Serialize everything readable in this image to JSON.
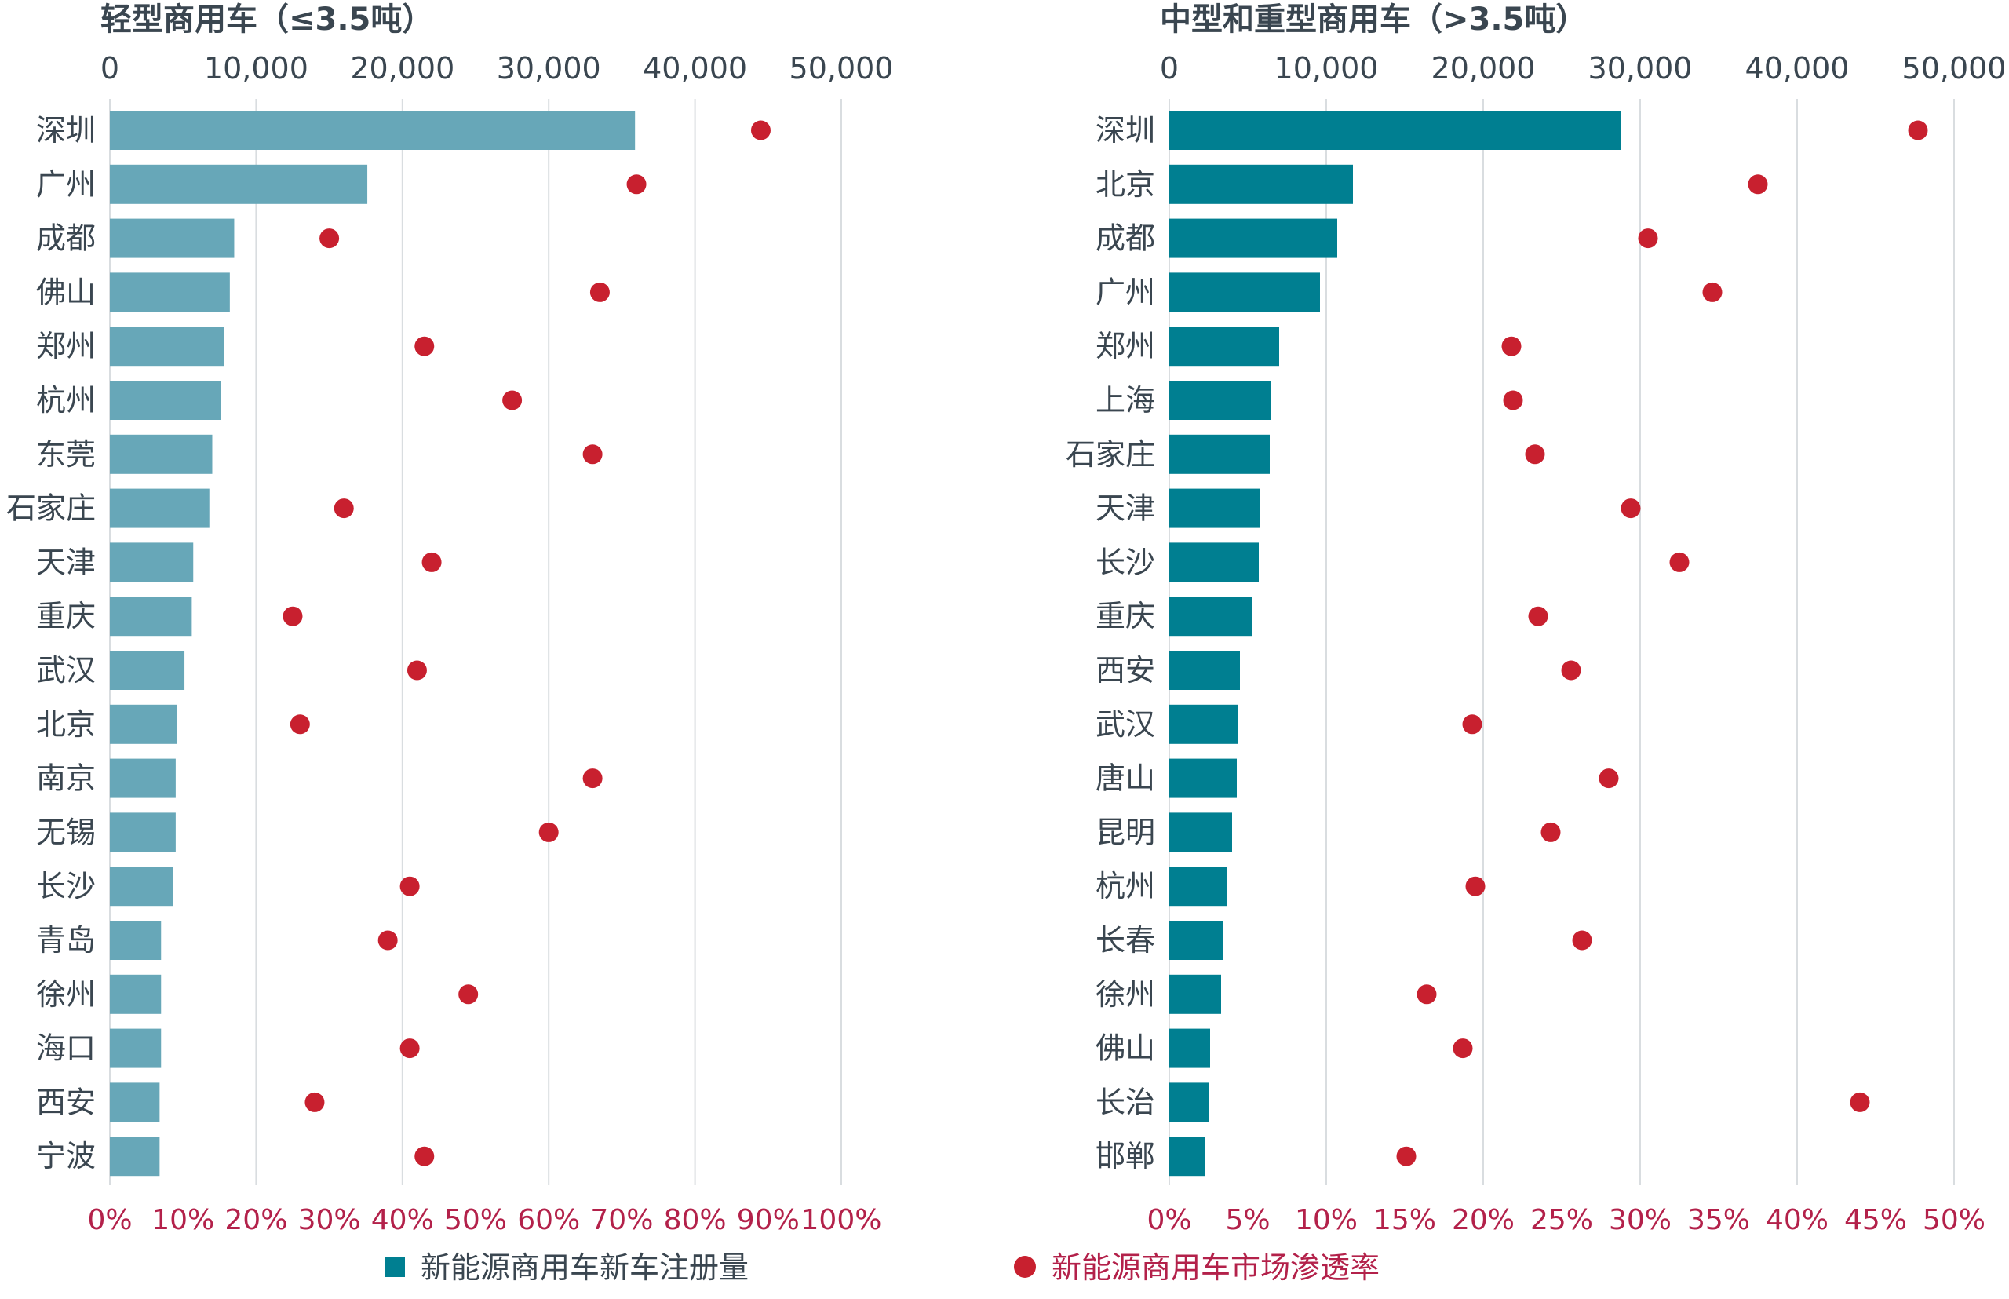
{
  "colors": {
    "bar_light": "#67A7B8",
    "bar_heavy": "#007F91",
    "dot": "#C8202F",
    "axis_text": "#3A4650",
    "pct_text": "#B3214A",
    "grid": "#D9DDE0"
  },
  "legend": {
    "bar_label": "新能源商用车新车注册量",
    "dot_label": "新能源商用车市场渗透率"
  },
  "chart_data": [
    {
      "type": "bar",
      "title": "轻型商用车（≤3.5吨）",
      "xlim": [
        0,
        50000
      ],
      "x_ticks": [
        0,
        10000,
        20000,
        30000,
        40000,
        50000
      ],
      "x_tick_labels": [
        "0",
        "10,000",
        "20,000",
        "30,000",
        "40,000",
        "50,000"
      ],
      "pct_lim": [
        0,
        1.0
      ],
      "pct_ticks": [
        0,
        0.1,
        0.2,
        0.3,
        0.4,
        0.5,
        0.6,
        0.7,
        0.8,
        0.9,
        1.0
      ],
      "pct_tick_labels": [
        "0%",
        "10%",
        "20%",
        "30%",
        "40%",
        "50%",
        "60%",
        "70%",
        "80%",
        "90%",
        "100%"
      ],
      "categories": [
        "深圳",
        "广州",
        "成都",
        "佛山",
        "郑州",
        "杭州",
        "东莞",
        "石家庄",
        "天津",
        "重庆",
        "武汉",
        "北京",
        "南京",
        "无锡",
        "长沙",
        "青岛",
        "徐州",
        "海口",
        "西安",
        "宁波"
      ],
      "series": [
        {
          "name": "新能源商用车新车注册量",
          "type": "bar",
          "values": [
            35900,
            17600,
            8500,
            8200,
            7800,
            7600,
            7000,
            6800,
            5700,
            5600,
            5100,
            4600,
            4500,
            4500,
            4300,
            3500,
            3500,
            3500,
            3400,
            3400
          ]
        },
        {
          "name": "新能源商用车市场渗透率",
          "type": "scatter",
          "values": [
            0.89,
            0.72,
            0.3,
            0.67,
            0.43,
            0.55,
            0.66,
            0.32,
            0.44,
            0.25,
            0.42,
            0.26,
            0.66,
            0.6,
            0.41,
            0.38,
            0.49,
            0.41,
            0.28,
            0.43
          ]
        }
      ]
    },
    {
      "type": "bar",
      "title": "中型和重型商用车（>3.5吨）",
      "xlim": [
        0,
        50000
      ],
      "x_ticks": [
        0,
        10000,
        20000,
        30000,
        40000,
        50000
      ],
      "x_tick_labels": [
        "0",
        "10,000",
        "20,000",
        "30,000",
        "40,000",
        "50,000"
      ],
      "pct_lim": [
        0,
        0.5
      ],
      "pct_ticks": [
        0,
        0.05,
        0.1,
        0.15,
        0.2,
        0.25,
        0.3,
        0.35,
        0.4,
        0.45,
        0.5
      ],
      "pct_tick_labels": [
        "0%",
        "5%",
        "10%",
        "15%",
        "20%",
        "25%",
        "30%",
        "35%",
        "40%",
        "45%",
        "50%"
      ],
      "categories": [
        "深圳",
        "北京",
        "成都",
        "广州",
        "郑州",
        "上海",
        "石家庄",
        "天津",
        "长沙",
        "重庆",
        "西安",
        "武汉",
        "唐山",
        "昆明",
        "杭州",
        "长春",
        "徐州",
        "佛山",
        "长治",
        "邯郸"
      ],
      "series": [
        {
          "name": "新能源商用车新车注册量",
          "type": "bar",
          "values": [
            28800,
            11700,
            10700,
            9600,
            7000,
            6500,
            6400,
            5800,
            5700,
            5300,
            4500,
            4400,
            4300,
            4000,
            3700,
            3400,
            3300,
            2600,
            2500,
            2300
          ]
        },
        {
          "name": "新能源商用车市场渗透率",
          "type": "scatter",
          "values": [
            0.477,
            0.375,
            0.305,
            0.346,
            0.218,
            0.219,
            0.233,
            0.294,
            0.325,
            0.235,
            0.256,
            0.193,
            0.28,
            0.243,
            0.195,
            0.263,
            0.164,
            0.187,
            0.44,
            0.151
          ]
        }
      ]
    }
  ]
}
